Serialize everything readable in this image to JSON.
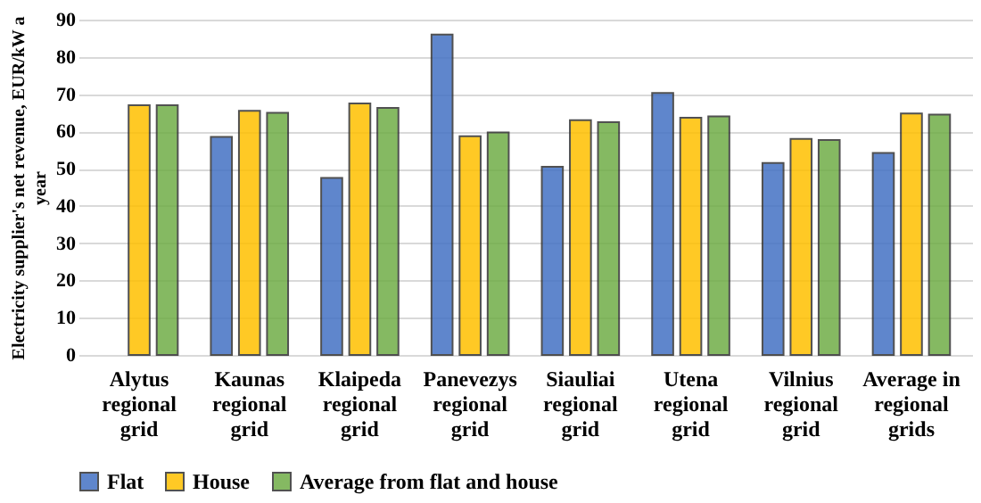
{
  "chart_data": {
    "type": "bar",
    "ylabel": "Electricity supplier's net revenue, EUR/kW a year",
    "categories": [
      "Alytus regional grid",
      "Kaunas regional grid",
      "Klaipeda regional grid",
      "Panevezys regional grid",
      "Siauliai regional grid",
      "Utena regional grid",
      "Vilnius regional grid",
      "Average in regional grids"
    ],
    "series": [
      {
        "name": "Flat",
        "color": "#4472c4",
        "values": [
          null,
          58.5,
          47.5,
          86,
          50.5,
          70.3,
          51.5,
          54.2
        ]
      },
      {
        "name": "House",
        "color": "#ffc000",
        "values": [
          67,
          65.5,
          67.5,
          58.7,
          63,
          63.7,
          58,
          64.8
        ]
      },
      {
        "name": "Average from flat and house",
        "color": "#70ad47",
        "values": [
          67,
          65,
          66.3,
          59.7,
          62.5,
          64,
          57.7,
          64.5
        ]
      }
    ],
    "ylim": [
      0,
      90
    ],
    "yticks": [
      0,
      10,
      20,
      30,
      40,
      50,
      60,
      70,
      80,
      90
    ],
    "grid": "y",
    "legend": "bottom"
  }
}
